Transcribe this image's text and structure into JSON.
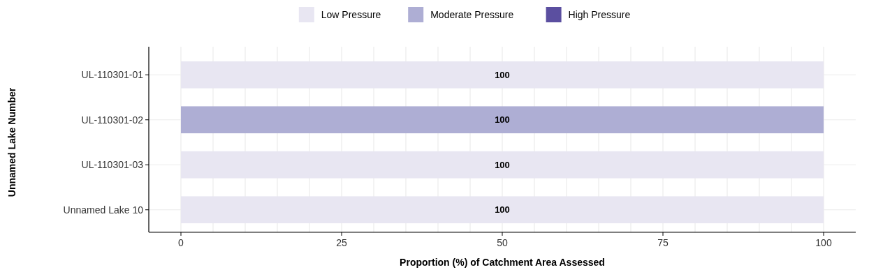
{
  "chart_data": {
    "type": "bar",
    "orientation": "horizontal",
    "stacked": true,
    "xlabel": "Proportion (%) of Catchment Area Assessed",
    "ylabel": "Unnamed Lake Number",
    "categories": [
      "UL-110301-01",
      "UL-110301-02",
      "UL-110301-03",
      "Unnamed Lake 10"
    ],
    "series": [
      {
        "name": "Low Pressure",
        "color": "#e8e6f2",
        "values": [
          100,
          0,
          100,
          100
        ],
        "value_labels": [
          "100",
          null,
          "100",
          "100"
        ]
      },
      {
        "name": "Moderate Pressure",
        "color": "#aeaed4",
        "values": [
          0,
          100,
          0,
          0
        ],
        "value_labels": [
          null,
          "100",
          null,
          null
        ]
      },
      {
        "name": "High Pressure",
        "color": "#5b4fa0",
        "values": [
          0,
          0,
          0,
          0
        ],
        "value_labels": [
          null,
          null,
          null,
          null
        ]
      }
    ],
    "xlim": [
      -5,
      105
    ],
    "xticks": [
      0,
      {
        "value": 5,
        "label": null
      },
      {
        "value": 10,
        "label": null
      },
      {
        "value": 15,
        "label": null
      },
      {
        "value": 20,
        "label": null
      },
      25,
      {
        "value": 30,
        "label": null
      },
      {
        "value": 35,
        "label": null
      },
      {
        "value": 40,
        "label": null
      },
      {
        "value": 45,
        "label": null
      },
      50,
      {
        "value": 55,
        "label": null
      },
      {
        "value": 60,
        "label": null
      },
      {
        "value": 65,
        "label": null
      },
      {
        "value": 70,
        "label": null
      },
      75,
      {
        "value": 80,
        "label": null
      },
      {
        "value": 85,
        "label": null
      },
      {
        "value": 90,
        "label": null
      },
      {
        "value": 95,
        "label": null
      },
      100
    ],
    "grid": true,
    "legend": "top"
  }
}
